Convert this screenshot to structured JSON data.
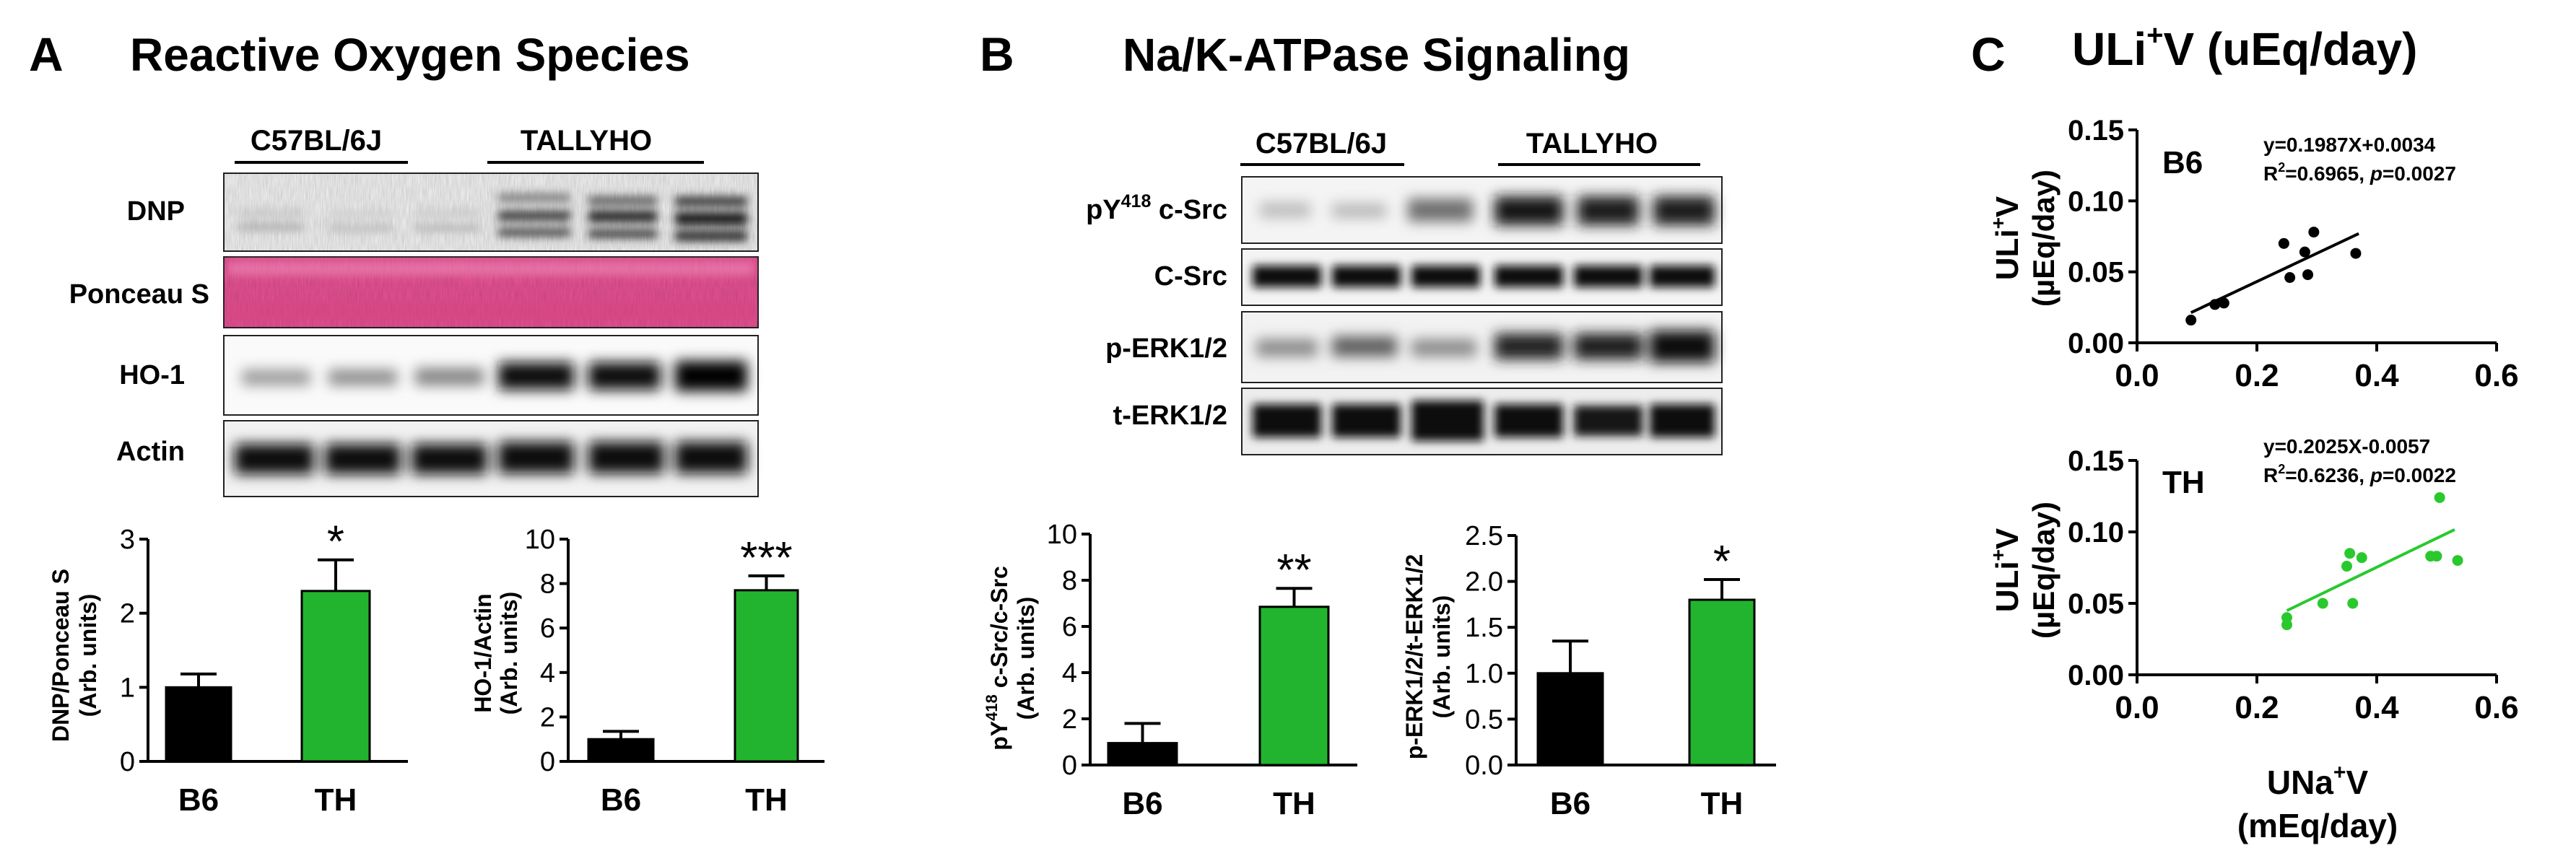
{
  "colors": {
    "b6": "#000000",
    "th": "#22b42e",
    "th_point": "#29c92e",
    "ponceau": "#e94f93"
  },
  "panelA": {
    "letter": "A",
    "title": "Reactive Oxygen Species",
    "blot_groups": [
      "C57BL/6J",
      "TALLYHO"
    ],
    "blot_rows": [
      "DNP",
      "Ponceau S",
      "HO-1",
      "Actin"
    ]
  },
  "panelB": {
    "letter": "B",
    "title": "Na/K-ATPase Signaling",
    "blot_groups": [
      "C57BL/6J",
      "TALLYHO"
    ],
    "blot_rows": [
      {
        "pre": "pY",
        "sup": "418",
        "post": " c-Src"
      },
      {
        "pre": "C-Src",
        "sup": "",
        "post": ""
      },
      {
        "pre": "p-ERK1/2",
        "sup": "",
        "post": ""
      },
      {
        "pre": "t-ERK1/2",
        "sup": "",
        "post": ""
      }
    ]
  },
  "panelC": {
    "letter": "C",
    "title_pre": "ULi",
    "title_sup": "+",
    "title_post": "V (uEq/day)",
    "x_label_pre": "UNa",
    "x_label_sup": "+",
    "x_label_post": "V",
    "x_label_line2": "(mEq/day)"
  },
  "chart_data": [
    {
      "id": "dnp-ponceau",
      "type": "bar",
      "categories": [
        "B6",
        "TH"
      ],
      "values": [
        1.0,
        2.3
      ],
      "errors": [
        0.18,
        0.42
      ],
      "significance": [
        "",
        "*"
      ],
      "ylabel": "DNP/Ponceau S",
      "ylabel2": "(Arb. units)",
      "ylim": [
        0,
        3
      ],
      "yticks": [
        0,
        1,
        2,
        3
      ]
    },
    {
      "id": "ho1-actin",
      "type": "bar",
      "categories": [
        "B6",
        "TH"
      ],
      "values": [
        1.0,
        7.7
      ],
      "errors": [
        0.35,
        0.65
      ],
      "significance": [
        "",
        "***"
      ],
      "ylabel": "HO-1/Actin",
      "ylabel2": "(Arb. units)",
      "ylim": [
        0,
        10
      ],
      "yticks": [
        0,
        2,
        4,
        6,
        8,
        10
      ]
    },
    {
      "id": "pysrc-src",
      "type": "bar",
      "categories": [
        "B6",
        "TH"
      ],
      "values": [
        0.95,
        6.85
      ],
      "errors": [
        0.85,
        0.8
      ],
      "significance": [
        "",
        "**"
      ],
      "ylabel_pre": "pY",
      "ylabel_sup": "418",
      "ylabel_post": " c-Src/c-Src",
      "ylabel2": "(Arb. units)",
      "ylim": [
        0,
        10
      ],
      "yticks": [
        0,
        2,
        4,
        6,
        8,
        10
      ]
    },
    {
      "id": "perk-terk",
      "type": "bar",
      "categories": [
        "B6",
        "TH"
      ],
      "values": [
        1.0,
        1.8
      ],
      "errors": [
        0.35,
        0.22
      ],
      "significance": [
        "",
        "*"
      ],
      "ylabel": "p-ERK1/2/t-ERK1/2",
      "ylabel2": "(Arb. units)",
      "ylim": [
        0,
        2.5
      ],
      "yticks": [
        "0.0",
        "0.5",
        "1.0",
        "1.5",
        "2.0",
        "2.5"
      ]
    },
    {
      "id": "scatter-b6",
      "type": "scatter",
      "group_label": "B6",
      "equation": "y=0.1987X+0.0034",
      "r2_pre": "R",
      "r2_sup": "2",
      "r2_mid": "=0.6965, ",
      "p_label": "p",
      "p_value": "=0.0027",
      "ylabel_pre": "ULi",
      "ylabel_sup": "+",
      "ylabel_post": "V",
      "ylabel2": "(µEq/day)",
      "xlim": [
        0,
        0.6
      ],
      "ylim": [
        0,
        0.15
      ],
      "xticks": [
        "0.0",
        "0.2",
        "0.4",
        "0.6"
      ],
      "yticks": [
        "0.00",
        "0.05",
        "0.10",
        "0.15"
      ],
      "fit": {
        "slope": 0.1987,
        "intercept": 0.0034,
        "x_range": [
          0.09,
          0.37
        ]
      },
      "points": [
        [
          0.09,
          0.016
        ],
        [
          0.13,
          0.027
        ],
        [
          0.145,
          0.028
        ],
        [
          0.245,
          0.07
        ],
        [
          0.255,
          0.046
        ],
        [
          0.28,
          0.064
        ],
        [
          0.285,
          0.048
        ],
        [
          0.295,
          0.078
        ],
        [
          0.365,
          0.063
        ]
      ]
    },
    {
      "id": "scatter-th",
      "type": "scatter",
      "group_label": "TH",
      "equation": "y=0.2025X-0.0057",
      "r2_pre": "R",
      "r2_sup": "2",
      "r2_mid": "=0.6236, ",
      "p_label": "p",
      "p_value": "=0.0022",
      "ylabel_pre": "ULi",
      "ylabel_sup": "+",
      "ylabel_post": "V",
      "ylabel2": "(µEq/day)",
      "xlim": [
        0,
        0.6
      ],
      "ylim": [
        0,
        0.15
      ],
      "xticks": [
        "0.0",
        "0.2",
        "0.4",
        "0.6"
      ],
      "yticks": [
        "0.00",
        "0.05",
        "0.10",
        "0.15"
      ],
      "fit": {
        "slope": 0.2025,
        "intercept": -0.0057,
        "x_range": [
          0.25,
          0.53
        ]
      },
      "points": [
        [
          0.25,
          0.035
        ],
        [
          0.25,
          0.04
        ],
        [
          0.31,
          0.05
        ],
        [
          0.35,
          0.076
        ],
        [
          0.355,
          0.085
        ],
        [
          0.36,
          0.05
        ],
        [
          0.375,
          0.082
        ],
        [
          0.49,
          0.083
        ],
        [
          0.5,
          0.083
        ],
        [
          0.505,
          0.124
        ],
        [
          0.535,
          0.08
        ]
      ]
    }
  ]
}
